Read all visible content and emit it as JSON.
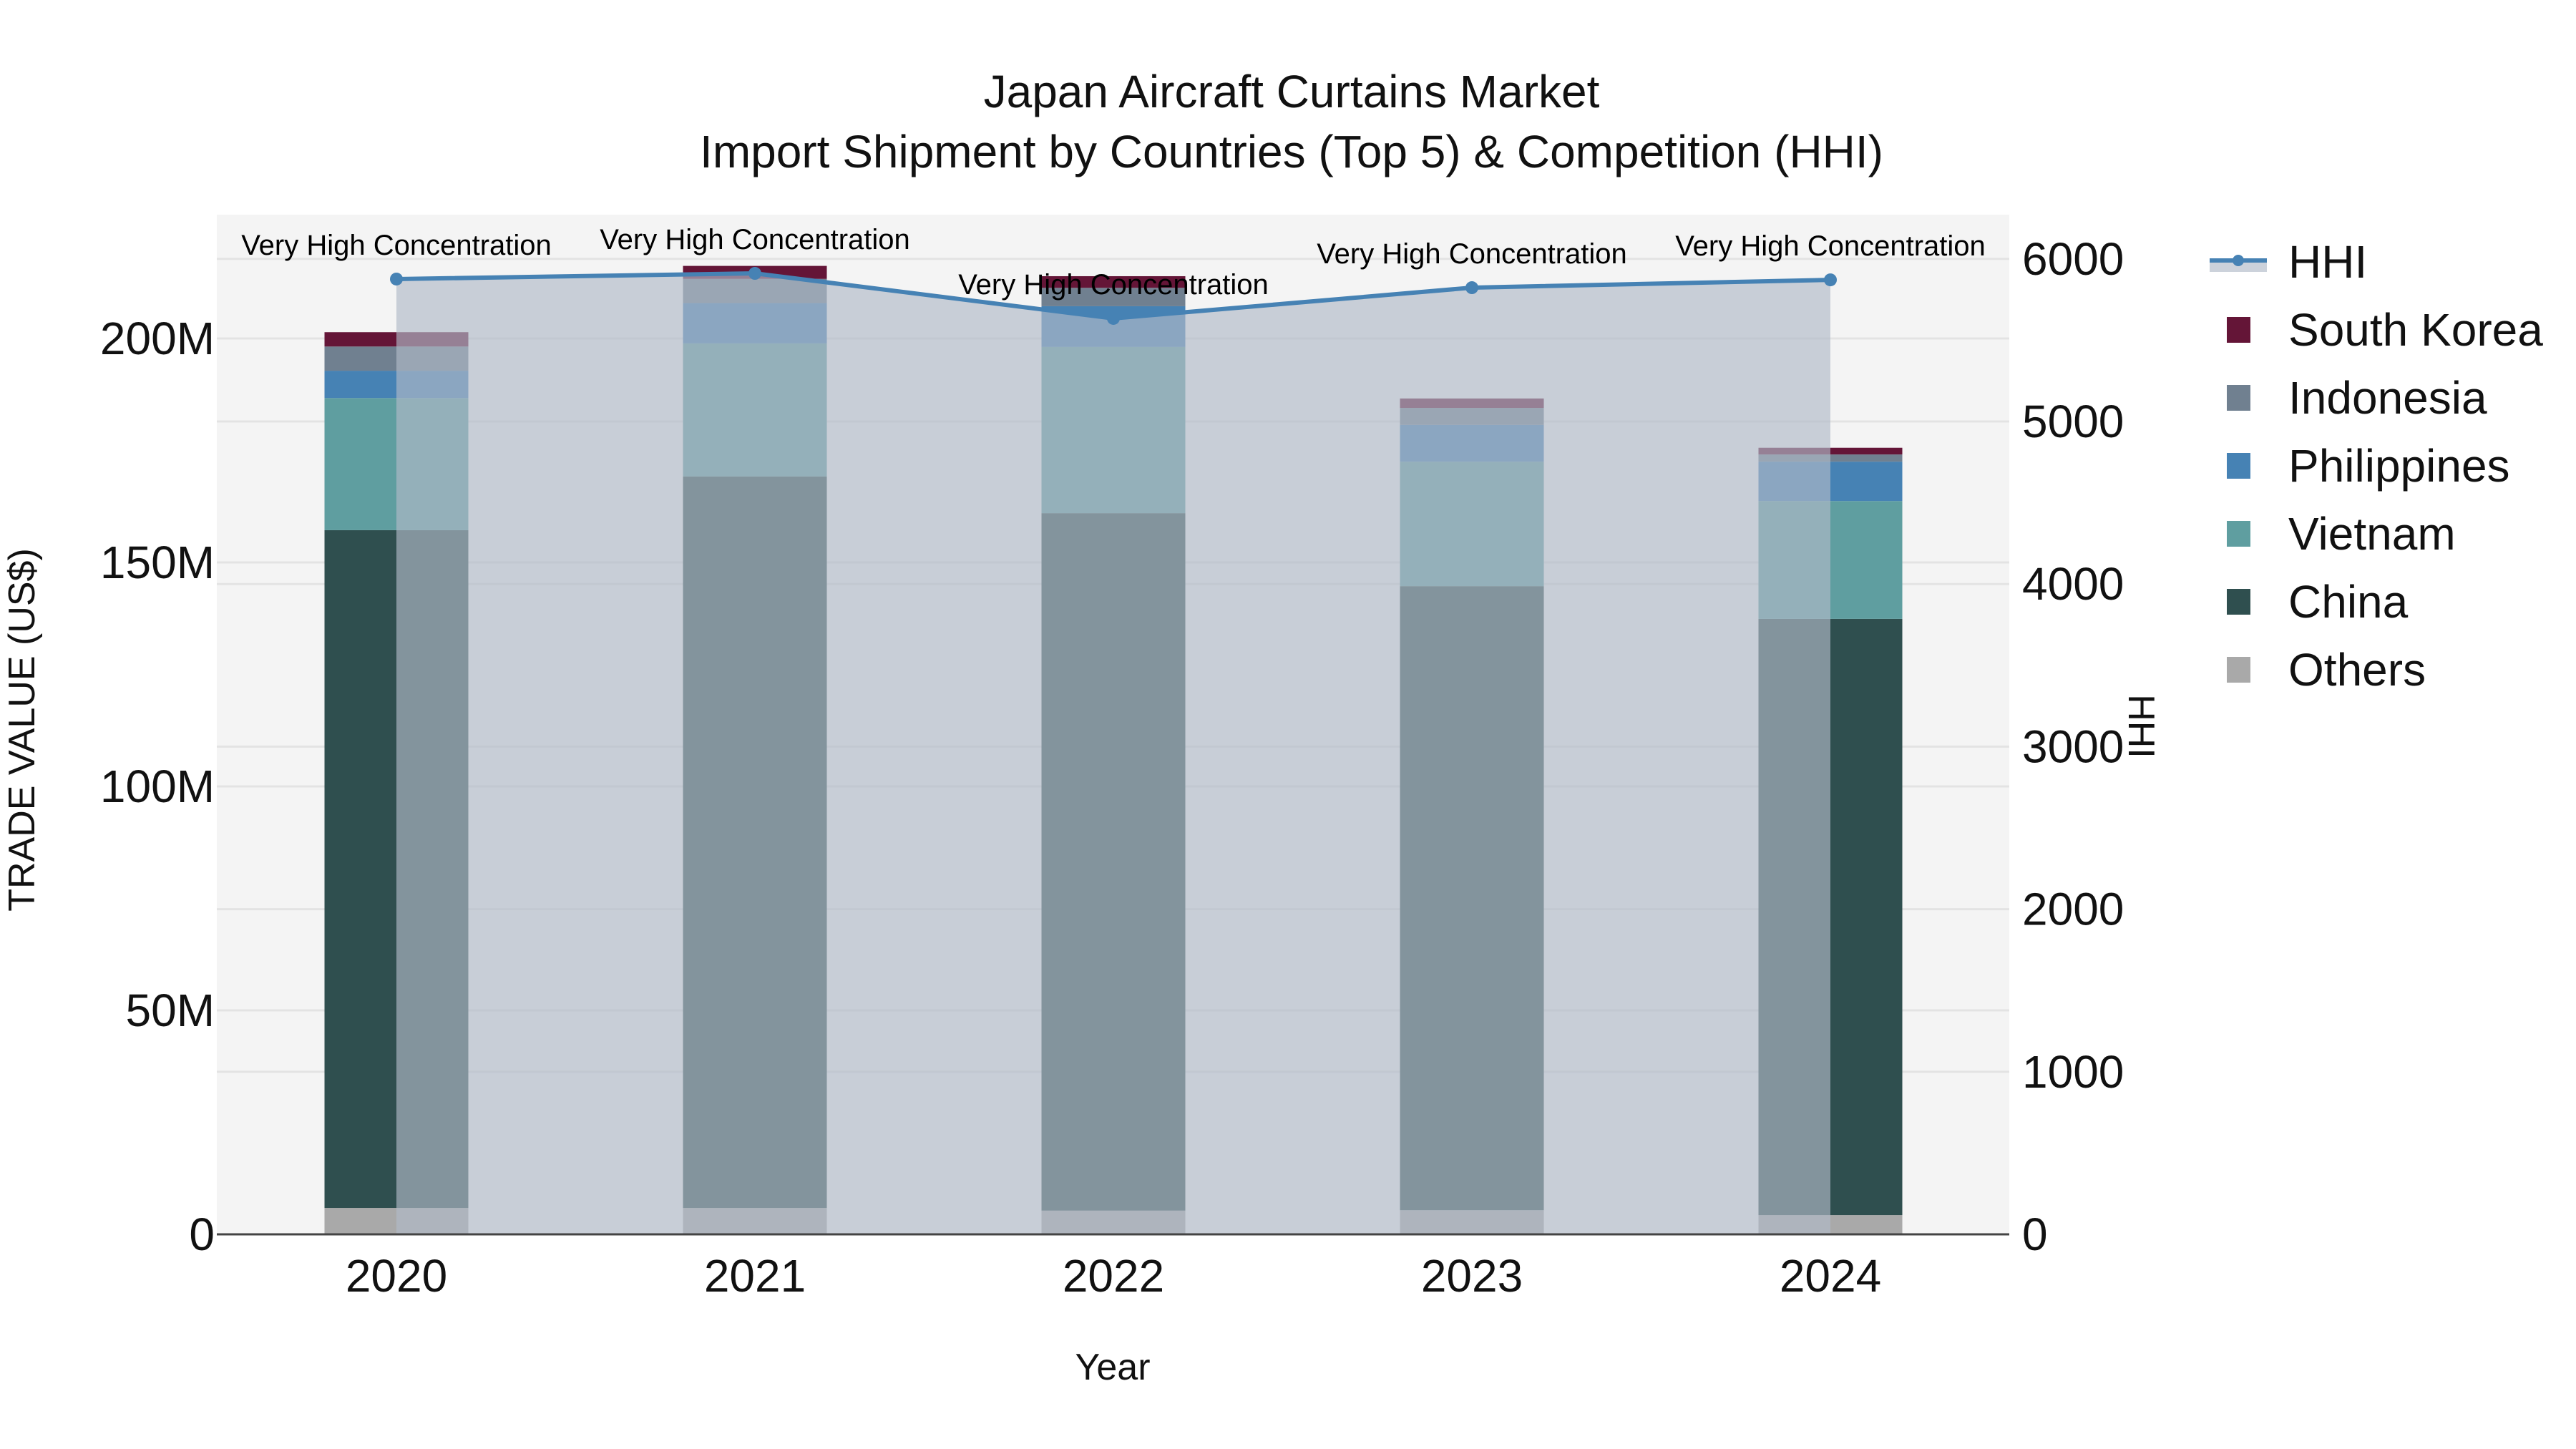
{
  "title": {
    "line1": "Japan Aircraft Curtains Market",
    "line2": "Import Shipment by Countries (Top 5) & Competition (HHI)"
  },
  "axes": {
    "x_title": "Year",
    "y_left_title": "TRADE VALUE (US$)",
    "y_right_title": "HHI",
    "y_left_ticks": [
      "0",
      "50M",
      "100M",
      "150M",
      "200M"
    ],
    "y_right_ticks": [
      "0",
      "1000",
      "2000",
      "3000",
      "4000",
      "5000",
      "6000"
    ]
  },
  "legend": {
    "items": [
      {
        "label": "HHI",
        "type": "line",
        "color": "#4682b4"
      },
      {
        "label": "South Korea",
        "type": "bar",
        "color": "#641537"
      },
      {
        "label": "Indonesia",
        "type": "bar",
        "color": "#708090"
      },
      {
        "label": "Philippines",
        "type": "bar",
        "color": "#4682b4"
      },
      {
        "label": "Vietnam",
        "type": "bar",
        "color": "#5f9ea0"
      },
      {
        "label": "China",
        "type": "bar",
        "color": "#2f4f4f"
      },
      {
        "label": "Others",
        "type": "bar",
        "color": "#a9a9a9"
      }
    ]
  },
  "colors": {
    "plot_bg": "#f4f4f4",
    "grid": "#e3e3e3",
    "hhi_line": "#4682b4",
    "hhi_fill": "rgba(176,186,200,0.65)",
    "axis_line": "#444444"
  },
  "chart_data": {
    "type": "bar",
    "stacked": true,
    "title": "Japan Aircraft Curtains Market — Import Shipment by Countries (Top 5) & Competition (HHI)",
    "xlabel": "Year",
    "ylabel": "TRADE VALUE (US$)",
    "y2label": "HHI",
    "categories": [
      "2020",
      "2021",
      "2022",
      "2023",
      "2024"
    ],
    "ylim": [
      0,
      228
    ],
    "y_unit": "M US$",
    "y2lim": [
      0,
      6273
    ],
    "grid": true,
    "legend_position": "right",
    "series": [
      {
        "name": "Others",
        "type": "bar",
        "color": "#a9a9a9",
        "values": [
          5.9,
          5.9,
          5.3,
          5.4,
          4.3
        ]
      },
      {
        "name": "China",
        "type": "bar",
        "color": "#2f4f4f",
        "values": [
          151.3,
          163.3,
          155.7,
          139.3,
          133.1
        ]
      },
      {
        "name": "Vietnam",
        "type": "bar",
        "color": "#5f9ea0",
        "values": [
          29.5,
          29.7,
          37.1,
          27.8,
          26.3
        ]
      },
      {
        "name": "Philippines",
        "type": "bar",
        "color": "#4682b4",
        "values": [
          6.1,
          9.0,
          9.1,
          8.2,
          8.8
        ]
      },
      {
        "name": "Indonesia",
        "type": "bar",
        "color": "#708090",
        "values": [
          5.4,
          5.4,
          4.1,
          3.8,
          1.6
        ]
      },
      {
        "name": "South Korea",
        "type": "bar",
        "color": "#641537",
        "values": [
          3.2,
          2.9,
          2.6,
          2.1,
          1.5
        ]
      },
      {
        "name": "HHI",
        "type": "line",
        "axis": "y2",
        "color": "#4682b4",
        "fill": "tozeroy",
        "values": [
          5876,
          5911,
          5634,
          5823,
          5871
        ]
      }
    ],
    "annotations": [
      {
        "x": "2020",
        "text": "Very High Concentration"
      },
      {
        "x": "2021",
        "text": "Very High Concentration"
      },
      {
        "x": "2022",
        "text": "Very High Concentration"
      },
      {
        "x": "2023",
        "text": "Very High Concentration"
      },
      {
        "x": "2024",
        "text": "Very High Concentration"
      }
    ]
  }
}
